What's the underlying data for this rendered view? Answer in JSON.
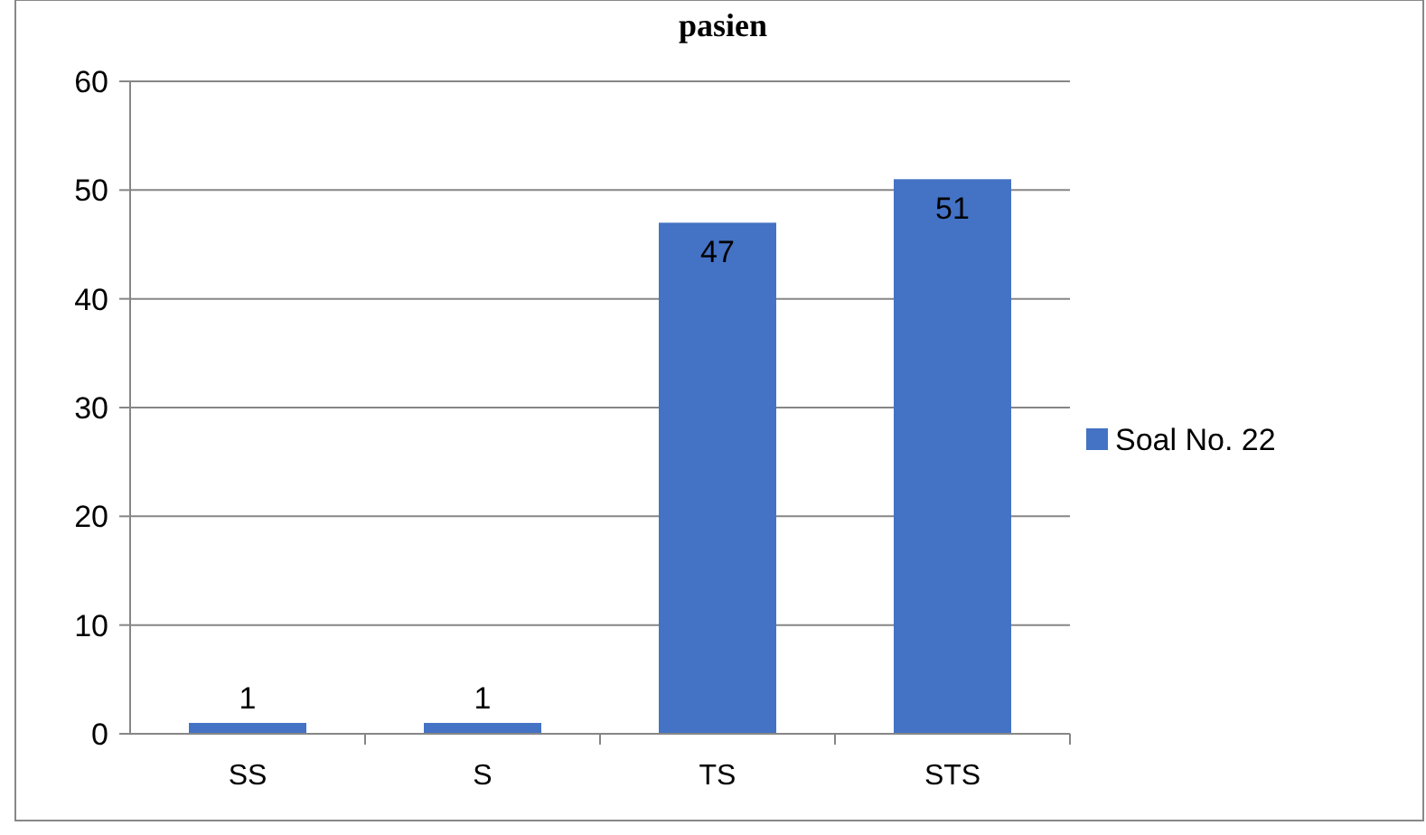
{
  "chart_data": {
    "type": "bar",
    "title": "pasien",
    "categories": [
      "SS",
      "S",
      "TS",
      "STS"
    ],
    "series": [
      {
        "name": "Soal No. 22",
        "color": "#4472c4",
        "values": [
          1,
          1,
          47,
          51
        ]
      }
    ],
    "ylim": [
      0,
      60
    ],
    "yticks": [
      0,
      10,
      20,
      30,
      40,
      50,
      60
    ],
    "grid": "y",
    "legend": "right",
    "data_labels": true
  }
}
